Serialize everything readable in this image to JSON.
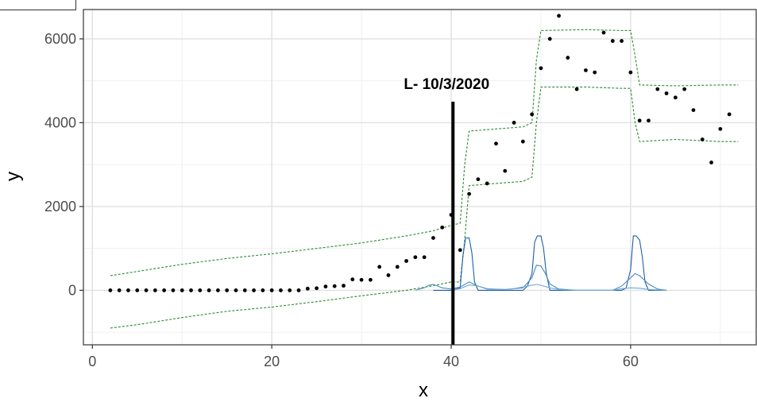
{
  "chart_data": {
    "type": "scatter",
    "title": "",
    "xlabel": "x",
    "ylabel": "y",
    "xlim": [
      -1,
      74
    ],
    "ylim": [
      -1300,
      6700
    ],
    "x_ticks": [
      0,
      20,
      40,
      60
    ],
    "y_ticks": [
      0,
      2000,
      4000,
      6000
    ],
    "x_tick_labels": [
      "0",
      "20",
      "40",
      "60"
    ],
    "y_tick_labels": [
      "0",
      "2000",
      "4000",
      "6000"
    ],
    "grid": true,
    "legend": "none",
    "annotation": {
      "text": "L- 10/3/2020",
      "x": 40.2,
      "y_top": 4500,
      "y_bottom": -1300
    },
    "series": [
      {
        "kind": "points",
        "color": "#000000",
        "x": [
          2,
          3,
          4,
          5,
          6,
          7,
          8,
          9,
          10,
          11,
          12,
          13,
          14,
          15,
          16,
          17,
          18,
          19,
          20,
          21,
          22,
          23,
          24,
          25,
          26,
          27,
          28,
          29,
          30,
          31,
          32,
          33,
          34,
          35,
          36,
          37,
          38,
          39,
          40,
          41,
          42,
          43,
          44,
          45,
          46,
          47,
          48,
          49,
          50,
          51,
          52,
          53,
          54,
          55,
          56,
          57,
          58,
          59,
          60,
          61,
          62,
          63,
          64,
          65,
          66,
          67,
          68,
          69,
          70,
          71
        ],
        "y": [
          0,
          0,
          0,
          0,
          0,
          0,
          0,
          0,
          0,
          0,
          0,
          0,
          0,
          0,
          0,
          0,
          0,
          0,
          0,
          0,
          0,
          0,
          40,
          50,
          90,
          100,
          110,
          260,
          250,
          250,
          560,
          360,
          560,
          700,
          790,
          790,
          1250,
          1500,
          1800,
          960,
          2300,
          2650,
          2550,
          3500,
          2850,
          4000,
          3550,
          4200,
          5300,
          6000,
          6550,
          5550,
          4800,
          5250,
          5200,
          6150,
          5950,
          5950,
          5200,
          4050,
          4050,
          4800,
          4700,
          4600,
          4800,
          4300,
          3600,
          3050,
          3850,
          4200
        ]
      },
      {
        "kind": "upper-band",
        "color": "#2e8b2e",
        "dashed": true,
        "x": [
          2,
          5,
          10,
          15,
          20,
          25,
          30,
          35,
          38,
          40,
          41,
          41.5,
          42,
          45,
          48,
          49,
          49.5,
          50,
          55,
          59,
          60,
          60.5,
          61,
          65,
          70,
          72
        ],
        "y": [
          350,
          450,
          620,
          760,
          870,
          1000,
          1130,
          1300,
          1420,
          1550,
          1600,
          3000,
          3800,
          3850,
          3900,
          4000,
          5500,
          6200,
          6220,
          6200,
          6200,
          5600,
          4900,
          4880,
          4900,
          4900
        ]
      },
      {
        "kind": "lower-band",
        "color": "#2e8b2e",
        "dashed": true,
        "x": [
          2,
          5,
          10,
          15,
          20,
          25,
          30,
          35,
          38,
          40,
          41,
          41.5,
          42,
          45,
          48,
          49,
          49.5,
          50,
          55,
          59,
          60,
          60.5,
          61,
          65,
          70,
          72
        ],
        "y": [
          -900,
          -820,
          -650,
          -500,
          -400,
          -270,
          -130,
          0,
          110,
          200,
          200,
          1200,
          2500,
          2550,
          2600,
          2700,
          4000,
          4850,
          4850,
          4820,
          4820,
          4000,
          3550,
          3600,
          3550,
          3550
        ]
      },
      {
        "kind": "peak-a",
        "color": "#1f5fa5",
        "x": [
          38,
          40,
          41,
          41.3,
          41.6,
          42,
          42.3,
          42.6,
          43,
          45,
          47,
          48,
          48.5,
          49,
          49.3,
          49.6,
          50,
          50.3,
          50.6,
          51,
          53,
          55,
          57,
          58,
          59,
          59.5,
          60,
          60.3,
          60.6,
          61,
          61.3,
          61.6,
          62,
          64
        ],
        "y": [
          0,
          0,
          60,
          800,
          1250,
          1250,
          900,
          200,
          0,
          0,
          0,
          0,
          100,
          400,
          1150,
          1300,
          1300,
          1000,
          400,
          0,
          0,
          0,
          0,
          0,
          0,
          50,
          500,
          1300,
          1300,
          1200,
          800,
          200,
          0,
          0
        ]
      },
      {
        "kind": "peak-b",
        "color": "#4a8bc0",
        "x": [
          36,
          37,
          37.5,
          38,
          38.5,
          39,
          40,
          41,
          42,
          43,
          44,
          46,
          48,
          49,
          49.5,
          50,
          50.5,
          51,
          52,
          54,
          56,
          58,
          59,
          60,
          60.5,
          61,
          62,
          63,
          64
        ],
        "y": [
          0,
          60,
          120,
          140,
          100,
          60,
          30,
          80,
          200,
          100,
          30,
          20,
          60,
          300,
          600,
          580,
          400,
          150,
          30,
          0,
          0,
          0,
          100,
          300,
          400,
          350,
          150,
          30,
          0
        ]
      },
      {
        "kind": "peak-c",
        "color": "#6fa8d6",
        "x": [
          40,
          41,
          42,
          43,
          44,
          46,
          47,
          48,
          49,
          49.5,
          50,
          51,
          52,
          54,
          56,
          58,
          59,
          60,
          61,
          62,
          64
        ],
        "y": [
          0,
          40,
          130,
          100,
          40,
          20,
          40,
          80,
          120,
          140,
          120,
          60,
          20,
          0,
          0,
          0,
          40,
          60,
          50,
          20,
          0
        ]
      }
    ]
  }
}
